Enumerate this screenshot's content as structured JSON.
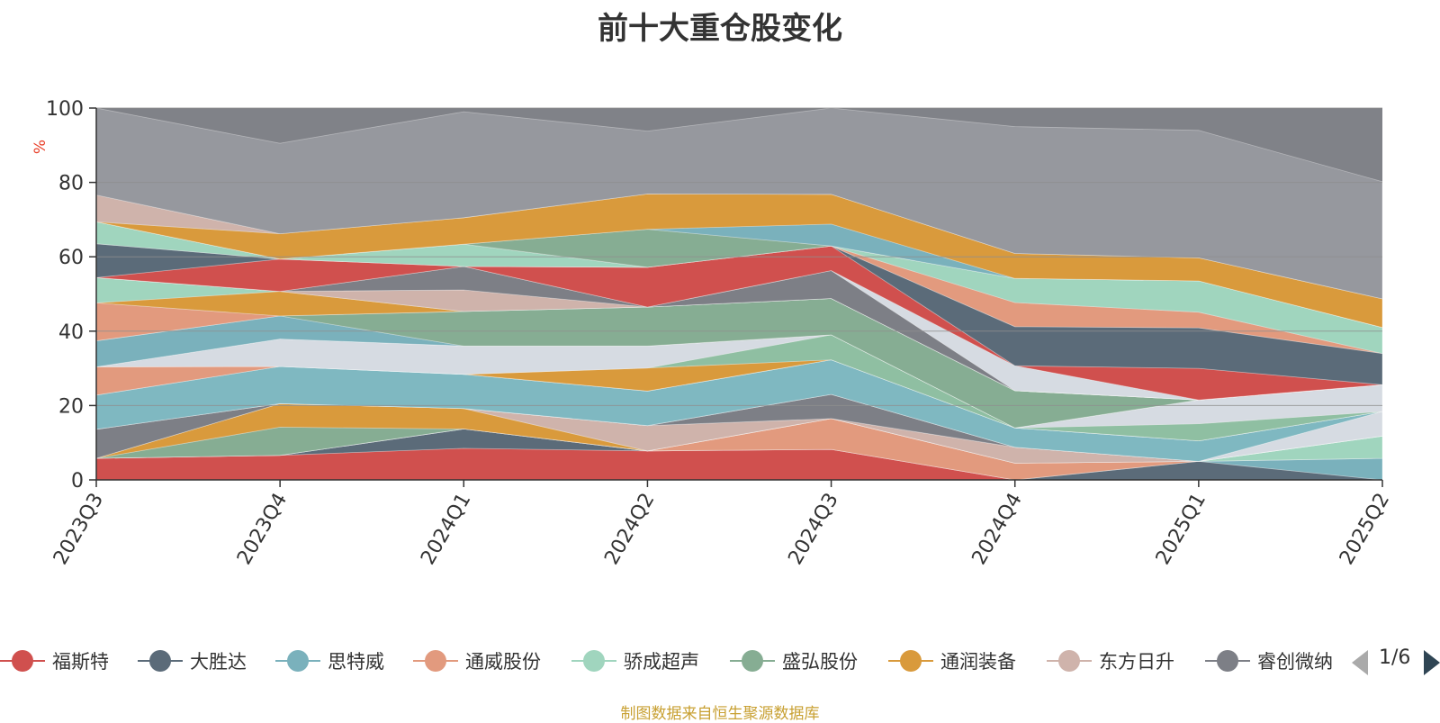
{
  "title": "前十大重仓股变化",
  "source_note": "制图数据来自恒生聚源数据库",
  "legend_pager": "1/6",
  "colors": {
    "background_area": "#808288",
    "grid": "#8e8e8e",
    "axis": "#333333",
    "ylabel": "#e8402a"
  },
  "chart_data": {
    "type": "area",
    "stacked": true,
    "title": "前十大重仓股变化",
    "ylabel": "%",
    "ylim": [
      0,
      100
    ],
    "yticks": [
      0,
      20,
      40,
      60,
      80,
      100
    ],
    "categories": [
      "2023Q3",
      "2023Q4",
      "2024Q1",
      "2024Q2",
      "2024Q3",
      "2024Q4",
      "2025Q1",
      "2025Q2"
    ],
    "series": [
      {
        "name": "福斯特",
        "color": "#d0504e",
        "values": [
          5.8,
          6.6,
          8.5,
          7.8,
          8.2,
          0.0,
          0.0,
          0.0
        ]
      },
      {
        "name": "大胜达",
        "color": "#5b6b79",
        "values": [
          0.0,
          0.0,
          5.2,
          0.0,
          0.0,
          0.0,
          5.0,
          0.0
        ]
      },
      {
        "name": "思特威",
        "color": "#7ab1bc",
        "values": [
          0.0,
          0.0,
          0.0,
          0.0,
          0.0,
          0.0,
          0.0,
          5.8
        ]
      },
      {
        "name": "通威股份",
        "color": "#e29a7e",
        "values": [
          0.0,
          0.0,
          0.0,
          0.0,
          8.3,
          4.5,
          0.0,
          0.0
        ]
      },
      {
        "name": "骄成超声",
        "color": "#a0d5be",
        "values": [
          0.0,
          0.0,
          0.0,
          0.0,
          0.0,
          0.0,
          0.0,
          6.0
        ]
      },
      {
        "name": "盛弘股份",
        "color": "#86ad93",
        "values": [
          0.0,
          7.6,
          0.0,
          0.0,
          0.0,
          0.0,
          0.0,
          0.0
        ]
      },
      {
        "name": "通润装备",
        "color": "#d99a3c",
        "values": [
          0.0,
          6.3,
          5.5,
          0.0,
          0.0,
          0.0,
          0.0,
          0.0
        ]
      },
      {
        "name": "东方日升",
        "color": "#cfb3ab",
        "values": [
          0.0,
          0.0,
          0.0,
          6.8,
          0.0,
          4.3,
          0.0,
          0.0
        ]
      },
      {
        "name": "睿创微纳",
        "color": "#7d7f86",
        "values": [
          7.8,
          0.0,
          0.0,
          0.0,
          6.5,
          0.0,
          0.0,
          0.0
        ]
      },
      {
        "name": "",
        "color": "#d6dbe2",
        "values": [
          0.0,
          0.0,
          0.0,
          0.0,
          0.0,
          0.0,
          0.0,
          6.6
        ]
      },
      {
        "name": "",
        "color": "#6a8896",
        "values": [
          0.0,
          0.0,
          0.0,
          0.0,
          0.0,
          0.0,
          0.0,
          0.0
        ]
      },
      {
        "name": "",
        "color": "#7fb8c1",
        "values": [
          9.2,
          10.0,
          9.2,
          9.3,
          9.3,
          5.2,
          5.5,
          0.0
        ]
      },
      {
        "name": "",
        "color": "#d0504e",
        "values": [
          0.0,
          0.0,
          0.0,
          0.0,
          0.0,
          0.0,
          0.0,
          0.0
        ]
      },
      {
        "name": "",
        "color": "#e29a7e",
        "values": [
          7.6,
          0.0,
          0.0,
          0.0,
          0.0,
          0.0,
          0.0,
          0.0
        ]
      },
      {
        "name": "",
        "color": "#d99a3c",
        "values": [
          0.0,
          0.0,
          0.0,
          6.2,
          0.0,
          0.0,
          0.0,
          0.0
        ]
      },
      {
        "name": "",
        "color": "#8fbfa2",
        "values": [
          0.0,
          0.0,
          0.0,
          0.0,
          6.7,
          0.0,
          4.6,
          0.0
        ]
      },
      {
        "name": "",
        "color": "#d6dbe2",
        "values": [
          0.0,
          7.4,
          7.6,
          5.9,
          0.0,
          0.0,
          6.4,
          7.2
        ]
      },
      {
        "name": "",
        "color": "#e29a7e",
        "values": [
          0.0,
          0.0,
          0.0,
          0.0,
          0.0,
          0.0,
          0.0,
          0.0
        ]
      },
      {
        "name": "",
        "color": "#7ab1bc",
        "values": [
          7.0,
          6.2,
          0.0,
          0.0,
          0.0,
          0.0,
          0.0,
          0.0
        ]
      },
      {
        "name": "",
        "color": "#86ad93",
        "values": [
          0.0,
          0.0,
          9.3,
          10.5,
          9.8,
          10.0,
          0.0,
          0.0
        ]
      },
      {
        "name": "",
        "color": "#e29a7e",
        "values": [
          10.2,
          0.0,
          0.0,
          0.0,
          0.0,
          0.0,
          0.0,
          0.0
        ]
      },
      {
        "name": "",
        "color": "#d99a3c",
        "values": [
          0.0,
          6.6,
          0.0,
          0.0,
          0.0,
          0.0,
          0.0,
          0.0
        ]
      },
      {
        "name": "",
        "color": "#a0d5be",
        "values": [
          6.8,
          0.0,
          0.0,
          0.0,
          0.0,
          0.0,
          0.0,
          0.0
        ]
      },
      {
        "name": "",
        "color": "#cfb3ab",
        "values": [
          0.0,
          0.0,
          5.8,
          0.0,
          0.0,
          0.0,
          0.0,
          0.0
        ]
      },
      {
        "name": "",
        "color": "#7d7f86",
        "values": [
          0.0,
          0.0,
          6.3,
          0.0,
          7.5,
          0.0,
          0.0,
          0.0
        ]
      },
      {
        "name": "",
        "color": "#d6dbe2",
        "values": [
          0.0,
          0.0,
          0.0,
          0.0,
          0.0,
          6.7,
          0.0,
          0.0
        ]
      },
      {
        "name": "",
        "color": "#d0504e",
        "values": [
          0.0,
          8.7,
          0.0,
          10.7,
          6.6,
          0.0,
          8.5,
          0.0
        ]
      },
      {
        "name": "",
        "color": "#5b6b79",
        "values": [
          9.1,
          0.0,
          0.0,
          0.0,
          0.0,
          10.5,
          10.9,
          8.4
        ]
      },
      {
        "name": "",
        "color": "#e29a7e",
        "values": [
          0.0,
          0.0,
          0.0,
          0.0,
          0.0,
          6.5,
          4.2,
          0.0
        ]
      },
      {
        "name": "",
        "color": "#a0d5be",
        "values": [
          5.9,
          0.0,
          6.0,
          0.0,
          0.0,
          6.5,
          8.4,
          7.0
        ]
      },
      {
        "name": "",
        "color": "#86ad93",
        "values": [
          0.0,
          0.0,
          0.0,
          10.2,
          0.0,
          0.0,
          0.0,
          0.0
        ]
      },
      {
        "name": "",
        "color": "#7ab1bc",
        "values": [
          0.0,
          0.0,
          0.0,
          0.0,
          5.9,
          0.0,
          0.0,
          0.0
        ]
      },
      {
        "name": "",
        "color": "#d99a3c",
        "values": [
          0.0,
          6.8,
          7.1,
          9.5,
          8.0,
          6.7,
          6.2,
          7.7
        ]
      },
      {
        "name": "",
        "color": "#cfb3ab",
        "values": [
          7.2,
          0.0,
          0.0,
          0.0,
          0.0,
          0.0,
          0.0,
          0.0
        ]
      },
      {
        "name": "",
        "color": "#96989e",
        "values": [
          23.4,
          24.3,
          28.5,
          16.9,
          23.2,
          34.1,
          34.3,
          31.5
        ]
      }
    ]
  }
}
